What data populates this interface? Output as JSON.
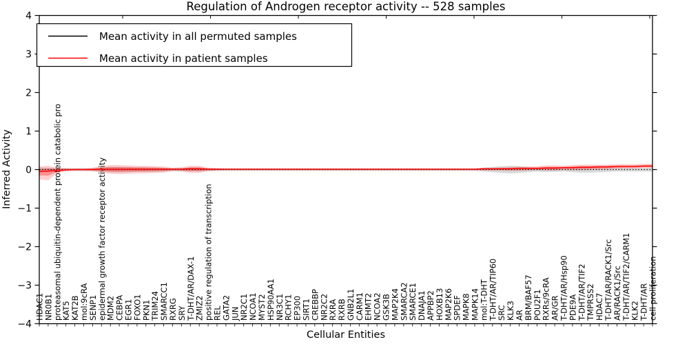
{
  "chart_data": {
    "type": "line",
    "title": "Regulation of Androgen receptor activity -- 528 samples",
    "xlabel": "Cellular Entities",
    "ylabel": "Inferred Activity",
    "ylim": [
      -4,
      4
    ],
    "yticks": [
      -4,
      -3,
      -2,
      -1,
      0,
      1,
      2,
      3,
      4
    ],
    "grid": false,
    "legend_position": "upper left",
    "legend": [
      {
        "label": "Mean activity in all permuted samples",
        "color": "#000000",
        "style": "solid"
      },
      {
        "label": "Mean activity in patient samples",
        "color": "#ff0000",
        "style": "solid"
      }
    ],
    "colors": {
      "permuted_line": "#000000",
      "patient_line": "#ff0000",
      "permuted_band": "#999999",
      "patient_band": "#ff0000"
    },
    "categories": [
      "HDAC1",
      "NR0B1",
      "proteasomal ubiquitin-dependent protein catabolic pro",
      "KAT5",
      "KAT2B",
      "mol:9cRA",
      "SENP1",
      "epidermal growth factor receptor activity",
      "MDM2",
      "CEBPA",
      "EGR1",
      "FOXO1",
      "PKN1",
      "TRIM24",
      "SMARCC1",
      "RXRG",
      "SRY",
      "T-DHT/AR/DAX-1",
      "ZMIZ2",
      "positive regulation of transcription",
      "REL",
      "GATA2",
      "JUN",
      "NR2C1",
      "NCOA1",
      "MYST2",
      "HSP90AA1",
      "NR3C1",
      "RCHY1",
      "EP300",
      "SIRT1",
      "CREBBP",
      "NR2C2",
      "RXRA",
      "RXRB",
      "GNB2L1",
      "CARM1",
      "EHMT2",
      "NCOA2",
      "GSK3B",
      "MAP2K4",
      "SMARCA2",
      "SMARCE1",
      "DNAJA1",
      "APPBP2",
      "HOXB13",
      "MAP2K6",
      "SPDEF",
      "MAPK8",
      "MAPK14",
      "mol:T-DHT",
      "T-DHT/AR/TIP60",
      "SRC",
      "KLK3",
      "AR",
      "BRM/BAF57",
      "POU2F1",
      "RXRs/9cRA",
      "AR/GR",
      "T-DHT/AR/Hsp90",
      "PDE9A",
      "T-DHT/AR/TIF2",
      "TMPRSS2",
      "HDAC7",
      "T-DHT/AR/RACK1/Src",
      "AR/RACK1/Src",
      "T-DHT/AR/TIF2/CARM1",
      "KLK2",
      "T-DHT/AR",
      "cell proliferation"
    ],
    "series": [
      {
        "name": "Mean activity in all permuted samples",
        "style": "dotted",
        "values": [
          0,
          0,
          0,
          0,
          0,
          0,
          0,
          0,
          0,
          0,
          0,
          0,
          0,
          0,
          0,
          0,
          0,
          0,
          0,
          0,
          0,
          0,
          0,
          0,
          0,
          0,
          0,
          0,
          0,
          0,
          0,
          0,
          0,
          0,
          0,
          0,
          0,
          0,
          0,
          0,
          0,
          0,
          0,
          0,
          0,
          0,
          0,
          0,
          0,
          0,
          0,
          0,
          0,
          0,
          0,
          0,
          0,
          0,
          0,
          0,
          0,
          0,
          0,
          0,
          0,
          0,
          0,
          0,
          0,
          0
        ]
      },
      {
        "name": "Mean activity in patient samples",
        "style": "solid",
        "values": [
          -0.05,
          -0.04,
          -0.02,
          -0.01,
          0,
          0,
          0,
          0.01,
          0.01,
          0.01,
          0.01,
          0.01,
          0.01,
          0.01,
          0.01,
          0.01,
          0.01,
          0.02,
          0.02,
          0.01,
          0.01,
          0.01,
          0.01,
          0.01,
          0.01,
          0.01,
          0.01,
          0.01,
          0.01,
          0.01,
          0.01,
          0.01,
          0.01,
          0.01,
          0.01,
          0.01,
          0.01,
          0.01,
          0.01,
          0.01,
          0.01,
          0.01,
          0.01,
          0.01,
          0.01,
          0.01,
          0.01,
          0.01,
          0.01,
          0.01,
          0.02,
          0.02,
          0.02,
          0.02,
          0.03,
          0.03,
          0.03,
          0.04,
          0.04,
          0.05,
          0.05,
          0.06,
          0.06,
          0.07,
          0.07,
          0.08,
          0.08,
          0.08,
          0.09,
          0.09
        ]
      }
    ],
    "bands": [
      {
        "name": "permuted-std-band",
        "half_width": [
          0.06,
          0.05,
          0.04,
          0.04,
          0.04,
          0.04,
          0.04,
          0.06,
          0.07,
          0.07,
          0.07,
          0.06,
          0.06,
          0.06,
          0.05,
          0.04,
          0.04,
          0.05,
          0.05,
          0.04,
          0.035,
          0.035,
          0.035,
          0.035,
          0.035,
          0.035,
          0.035,
          0.035,
          0.035,
          0.035,
          0.035,
          0.035,
          0.035,
          0.035,
          0.035,
          0.035,
          0.035,
          0.035,
          0.035,
          0.035,
          0.035,
          0.035,
          0.035,
          0.035,
          0.035,
          0.035,
          0.035,
          0.035,
          0.035,
          0.035,
          0.05,
          0.07,
          0.09,
          0.1,
          0.09,
          0.07,
          0.05,
          0.06,
          0.06,
          0.05,
          0.07,
          0.08,
          0.08,
          0.07,
          0.06,
          0.05,
          0.05,
          0.05,
          0.05,
          0.05
        ]
      },
      {
        "name": "patient-std-band",
        "lower": [
          -0.25,
          -0.28,
          -0.1,
          -0.04,
          -0.03,
          -0.03,
          -0.04,
          -0.08,
          -0.11,
          -0.12,
          -0.11,
          -0.1,
          -0.1,
          -0.09,
          -0.08,
          -0.04,
          -0.05,
          -0.09,
          -0.09,
          -0.04,
          -0.03,
          -0.02,
          -0.02,
          -0.02,
          -0.02,
          -0.02,
          -0.02,
          -0.02,
          -0.02,
          -0.02,
          -0.02,
          -0.02,
          -0.02,
          -0.02,
          -0.02,
          -0.02,
          -0.02,
          -0.02,
          -0.02,
          -0.02,
          -0.02,
          -0.02,
          -0.02,
          -0.02,
          -0.02,
          -0.02,
          -0.02,
          -0.02,
          -0.02,
          -0.02,
          -0.03,
          -0.03,
          -0.03,
          -0.04,
          -0.04,
          -0.03,
          -0.02,
          -0.03,
          -0.03,
          -0.01,
          -0.02,
          -0.02,
          -0.01,
          0.0,
          0.01,
          0.02,
          0.03,
          0.03,
          0.04,
          0.04
        ],
        "upper": [
          0.08,
          0.1,
          0.05,
          0.04,
          0.03,
          0.03,
          0.05,
          0.09,
          0.12,
          0.12,
          0.11,
          0.1,
          0.1,
          0.09,
          0.08,
          0.05,
          0.06,
          0.1,
          0.1,
          0.05,
          0.04,
          0.03,
          0.03,
          0.03,
          0.03,
          0.03,
          0.03,
          0.03,
          0.03,
          0.03,
          0.03,
          0.03,
          0.03,
          0.03,
          0.03,
          0.03,
          0.03,
          0.03,
          0.03,
          0.03,
          0.03,
          0.03,
          0.03,
          0.03,
          0.03,
          0.03,
          0.03,
          0.03,
          0.03,
          0.03,
          0.05,
          0.05,
          0.06,
          0.07,
          0.08,
          0.08,
          0.09,
          0.11,
          0.11,
          0.1,
          0.12,
          0.13,
          0.13,
          0.13,
          0.13,
          0.14,
          0.14,
          0.14,
          0.15,
          0.15
        ]
      }
    ],
    "top_tick_xs": [
      178,
      305.5,
      433,
      560.5,
      688,
      815.5,
      943
    ]
  }
}
